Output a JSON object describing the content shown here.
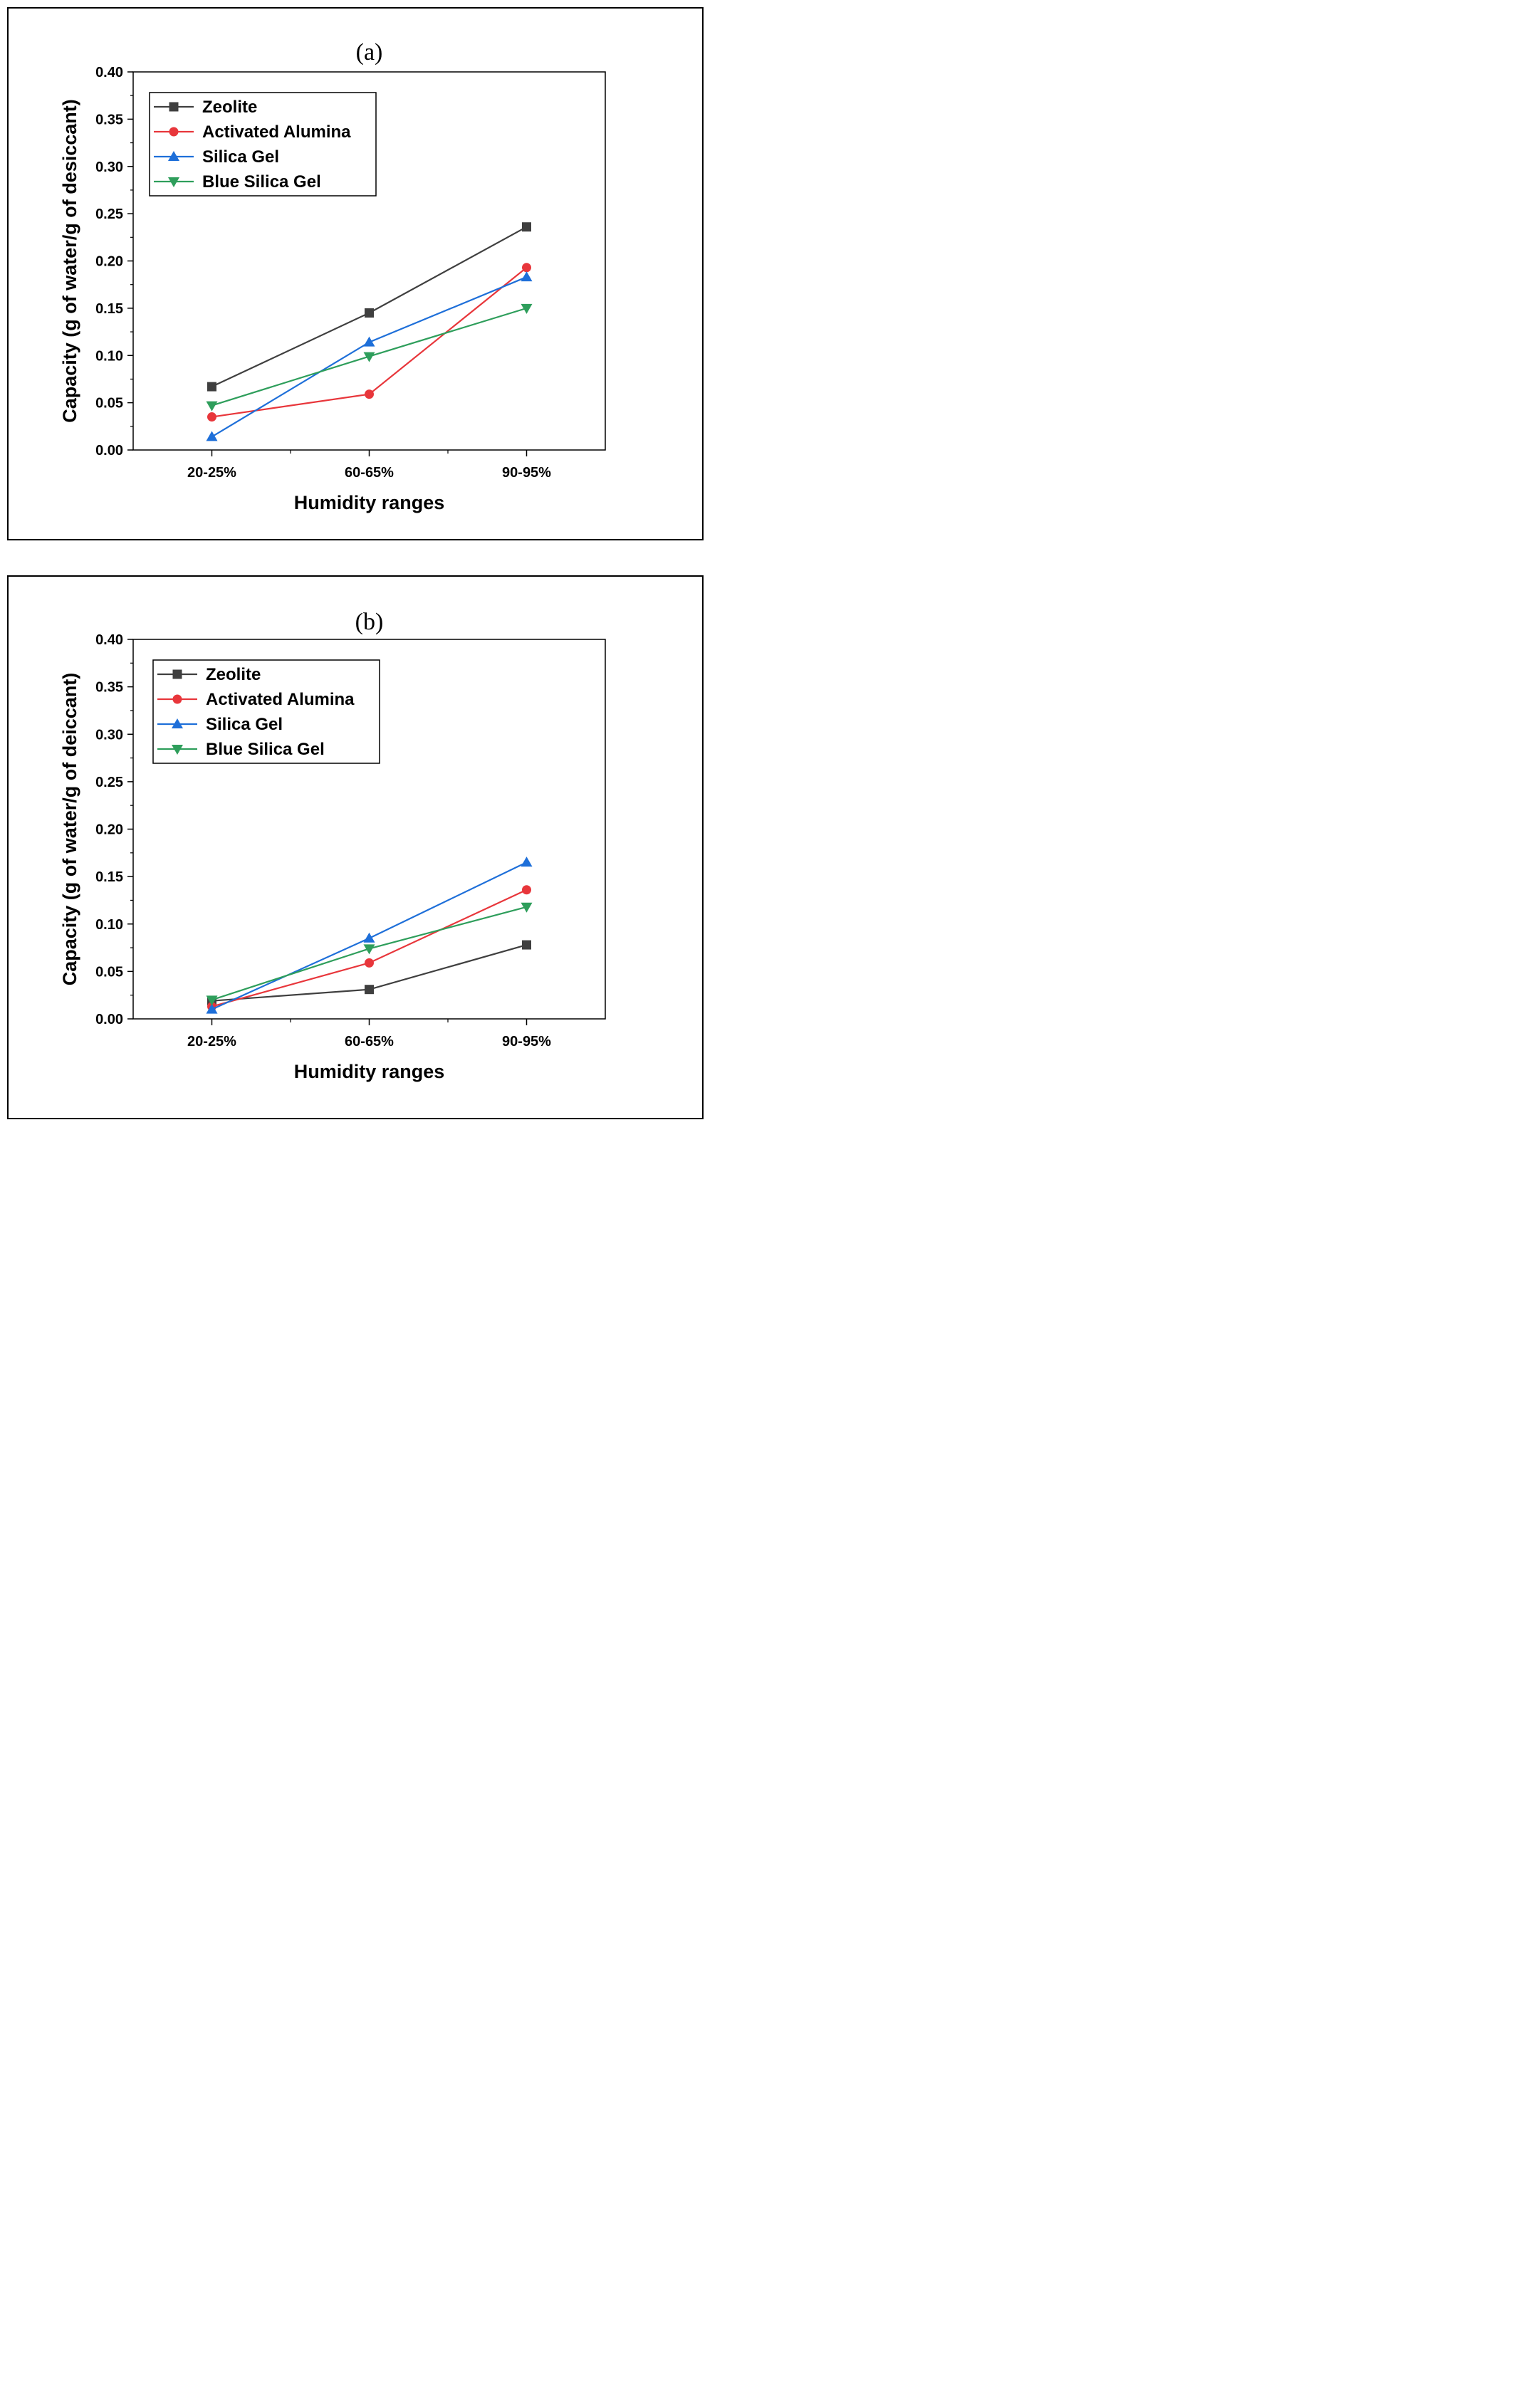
{
  "colors": {
    "zeolite": "#3f3f3f",
    "activated_alumina": "#e8363b",
    "silica_gel": "#1e6fd9",
    "blue_silica_gel": "#2e9e5b"
  },
  "chart_data": [
    {
      "type": "line",
      "title": "(a)",
      "xlabel": "Humidity ranges",
      "ylabel": "Capacity (g of water/g of desiccant)",
      "categories": [
        "20-25%",
        "60-65%",
        "90-95%"
      ],
      "ylim": [
        0,
        0.4
      ],
      "yticks": [
        "0.00",
        "0.05",
        "0.10",
        "0.15",
        "0.20",
        "0.25",
        "0.30",
        "0.35",
        "0.40"
      ],
      "legend": "top-left",
      "series": [
        {
          "name": "Zeolite",
          "marker": "square",
          "color": "#3f3f3f",
          "values": [
            0.067,
            0.145,
            0.236
          ]
        },
        {
          "name": "Activated Alumina",
          "marker": "circle",
          "color": "#e8363b",
          "values": [
            0.035,
            0.059,
            0.193
          ]
        },
        {
          "name": "Silica Gel",
          "marker": "triangle-up",
          "color": "#1e6fd9",
          "values": [
            0.014,
            0.114,
            0.183
          ]
        },
        {
          "name": "Blue Silica Gel",
          "marker": "triangle-down",
          "color": "#2e9e5b",
          "values": [
            0.047,
            0.099,
            0.15
          ]
        }
      ]
    },
    {
      "type": "line",
      "title": "(b)",
      "xlabel": "Humidity ranges",
      "ylabel": "Capacity (g of water/g of deiccant)",
      "categories": [
        "20-25%",
        "60-65%",
        "90-95%"
      ],
      "ylim": [
        0,
        0.4
      ],
      "yticks": [
        "0.00",
        "0.05",
        "0.10",
        "0.15",
        "0.20",
        "0.25",
        "0.30",
        "0.35",
        "0.40"
      ],
      "legend": "top-left",
      "series": [
        {
          "name": "Zeolite",
          "marker": "square",
          "color": "#3f3f3f",
          "values": [
            0.019,
            0.031,
            0.078
          ]
        },
        {
          "name": "Activated Alumina",
          "marker": "circle",
          "color": "#e8363b",
          "values": [
            0.013,
            0.059,
            0.136
          ]
        },
        {
          "name": "Silica Gel",
          "marker": "triangle-up",
          "color": "#1e6fd9",
          "values": [
            0.01,
            0.085,
            0.165
          ]
        },
        {
          "name": "Blue Silica Gel",
          "marker": "triangle-down",
          "color": "#2e9e5b",
          "values": [
            0.02,
            0.074,
            0.118
          ]
        }
      ]
    }
  ]
}
